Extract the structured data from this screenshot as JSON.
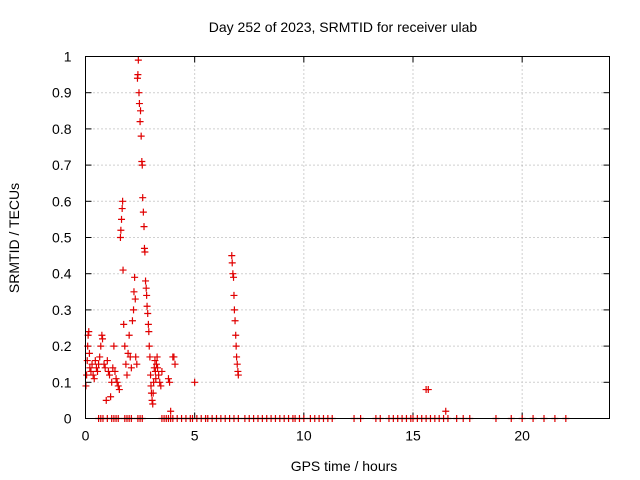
{
  "chart_data": {
    "type": "scatter",
    "title": "Day 252 of 2023, SRMTID for receiver ulab",
    "xlabel": "GPS time / hours",
    "ylabel": "SRMTID / TECUs",
    "xlim": [
      0,
      24
    ],
    "ylim": [
      0,
      1
    ],
    "grid": true,
    "x_ticks": [
      0,
      5,
      10,
      15,
      20
    ],
    "x_tick_labels": [
      "0",
      "5",
      "10",
      "15",
      "20"
    ],
    "y_ticks": [
      0,
      0.1,
      0.2,
      0.3,
      0.4,
      0.5,
      0.6,
      0.7,
      0.8,
      0.9,
      1
    ],
    "y_tick_labels": [
      "0",
      "0.1",
      "0.2",
      "0.3",
      "0.4",
      "0.5",
      "0.6",
      "0.7",
      "0.8",
      "0.9",
      "1"
    ],
    "marker": "plus",
    "color": "#e00000",
    "series": [
      {
        "name": "SRMTID",
        "points": [
          [
            0.02,
            0.09
          ],
          [
            0.05,
            0.12
          ],
          [
            0.08,
            0.16
          ],
          [
            0.1,
            0.2
          ],
          [
            0.12,
            0.23
          ],
          [
            0.15,
            0.24
          ],
          [
            0.18,
            0.18
          ],
          [
            0.2,
            0.14
          ],
          [
            0.25,
            0.13
          ],
          [
            0.3,
            0.15
          ],
          [
            0.35,
            0.12
          ],
          [
            0.4,
            0.11
          ],
          [
            0.45,
            0.16
          ],
          [
            0.5,
            0.14
          ],
          [
            0.55,
            0.13
          ],
          [
            0.6,
            0.15
          ],
          [
            0.65,
            0.17
          ],
          [
            0.7,
            0.2
          ],
          [
            0.75,
            0.23
          ],
          [
            0.78,
            0.22
          ],
          [
            0.85,
            0.15
          ],
          [
            0.9,
            0.14
          ],
          [
            0.95,
            0.05
          ],
          [
            1.0,
            0.16
          ],
          [
            1.05,
            0.13
          ],
          [
            1.1,
            0.12
          ],
          [
            1.15,
            0.06
          ],
          [
            1.2,
            0.1
          ],
          [
            1.25,
            0.14
          ],
          [
            1.3,
            0.2
          ],
          [
            1.35,
            0.13
          ],
          [
            1.4,
            0.11
          ],
          [
            1.45,
            0.1
          ],
          [
            1.5,
            0.09
          ],
          [
            1.55,
            0.08
          ],
          [
            1.6,
            0.5
          ],
          [
            1.62,
            0.52
          ],
          [
            1.65,
            0.55
          ],
          [
            1.68,
            0.58
          ],
          [
            1.7,
            0.6
          ],
          [
            1.72,
            0.41
          ],
          [
            1.75,
            0.26
          ],
          [
            1.8,
            0.2
          ],
          [
            1.85,
            0.15
          ],
          [
            1.9,
            0.12
          ],
          [
            1.95,
            0.18
          ],
          [
            2.0,
            0.23
          ],
          [
            2.05,
            0.17
          ],
          [
            2.1,
            0.14
          ],
          [
            2.15,
            0.27
          ],
          [
            2.2,
            0.3
          ],
          [
            2.22,
            0.35
          ],
          [
            2.25,
            0.39
          ],
          [
            2.28,
            0.33
          ],
          [
            2.3,
            0.17
          ],
          [
            2.35,
            0.15
          ],
          [
            2.38,
            0.94
          ],
          [
            2.4,
            0.95
          ],
          [
            2.42,
            0.99
          ],
          [
            2.45,
            0.9
          ],
          [
            2.47,
            0.87
          ],
          [
            2.5,
            0.82
          ],
          [
            2.52,
            0.85
          ],
          [
            2.55,
            0.78
          ],
          [
            2.58,
            0.71
          ],
          [
            2.6,
            0.7
          ],
          [
            2.62,
            0.61
          ],
          [
            2.65,
            0.57
          ],
          [
            2.68,
            0.53
          ],
          [
            2.7,
            0.47
          ],
          [
            2.72,
            0.46
          ],
          [
            2.75,
            0.38
          ],
          [
            2.78,
            0.36
          ],
          [
            2.8,
            0.34
          ],
          [
            2.82,
            0.31
          ],
          [
            2.85,
            0.29
          ],
          [
            2.88,
            0.26
          ],
          [
            2.9,
            0.24
          ],
          [
            2.92,
            0.2
          ],
          [
            2.95,
            0.17
          ],
          [
            2.98,
            0.12
          ],
          [
            3.0,
            0.09
          ],
          [
            3.02,
            0.07
          ],
          [
            3.05,
            0.05
          ],
          [
            3.08,
            0.04
          ],
          [
            3.1,
            0.07
          ],
          [
            3.12,
            0.1
          ],
          [
            3.15,
            0.14
          ],
          [
            3.18,
            0.16
          ],
          [
            3.2,
            0.13
          ],
          [
            3.22,
            0.11
          ],
          [
            3.25,
            0.15
          ],
          [
            3.28,
            0.17
          ],
          [
            3.3,
            0.14
          ],
          [
            3.35,
            0.12
          ],
          [
            3.4,
            0.1
          ],
          [
            3.45,
            0.09
          ],
          [
            3.5,
            0.13
          ],
          [
            3.8,
            0.11
          ],
          [
            3.85,
            0.1
          ],
          [
            3.9,
            0.02
          ],
          [
            4.0,
            0.17
          ],
          [
            4.05,
            0.17
          ],
          [
            4.1,
            0.15
          ],
          [
            5.0,
            0.1
          ],
          [
            6.7,
            0.45
          ],
          [
            6.72,
            0.43
          ],
          [
            6.75,
            0.4
          ],
          [
            6.78,
            0.39
          ],
          [
            6.8,
            0.34
          ],
          [
            6.82,
            0.3
          ],
          [
            6.85,
            0.27
          ],
          [
            6.88,
            0.23
          ],
          [
            6.9,
            0.2
          ],
          [
            6.92,
            0.17
          ],
          [
            6.95,
            0.15
          ],
          [
            6.98,
            0.13
          ],
          [
            7.0,
            0.12
          ],
          [
            15.6,
            0.08
          ],
          [
            15.7,
            0.08
          ],
          [
            16.5,
            0.02
          ],
          [
            0.6,
            0
          ],
          [
            0.7,
            0
          ],
          [
            0.8,
            0
          ],
          [
            1.0,
            0
          ],
          [
            1.2,
            0
          ],
          [
            1.3,
            0
          ],
          [
            1.4,
            0
          ],
          [
            1.5,
            0
          ],
          [
            1.8,
            0
          ],
          [
            1.9,
            0
          ],
          [
            2.0,
            0
          ],
          [
            2.1,
            0
          ],
          [
            2.4,
            0
          ],
          [
            2.5,
            0
          ],
          [
            2.6,
            0
          ],
          [
            3.5,
            0
          ],
          [
            3.6,
            0
          ],
          [
            3.7,
            0
          ],
          [
            3.8,
            0
          ],
          [
            3.9,
            0
          ],
          [
            4.0,
            0
          ],
          [
            4.2,
            0
          ],
          [
            4.4,
            0
          ],
          [
            4.6,
            0
          ],
          [
            4.8,
            0
          ],
          [
            4.9,
            0
          ],
          [
            5.1,
            0
          ],
          [
            5.3,
            0
          ],
          [
            5.5,
            0
          ],
          [
            5.6,
            0
          ],
          [
            5.8,
            0
          ],
          [
            6.0,
            0
          ],
          [
            6.2,
            0
          ],
          [
            6.4,
            0
          ],
          [
            6.6,
            0
          ],
          [
            6.8,
            0
          ],
          [
            7.0,
            0
          ],
          [
            7.3,
            0
          ],
          [
            7.5,
            0
          ],
          [
            7.7,
            0
          ],
          [
            7.9,
            0
          ],
          [
            8.1,
            0
          ],
          [
            8.3,
            0
          ],
          [
            8.5,
            0
          ],
          [
            8.7,
            0
          ],
          [
            8.9,
            0
          ],
          [
            9.1,
            0
          ],
          [
            9.3,
            0
          ],
          [
            9.5,
            0
          ],
          [
            9.6,
            0
          ],
          [
            9.8,
            0
          ],
          [
            10.0,
            0
          ],
          [
            10.3,
            0
          ],
          [
            10.5,
            0
          ],
          [
            10.7,
            0
          ],
          [
            10.9,
            0
          ],
          [
            11.1,
            0
          ],
          [
            11.3,
            0
          ],
          [
            12.3,
            0
          ],
          [
            12.6,
            0
          ],
          [
            13.3,
            0
          ],
          [
            13.5,
            0
          ],
          [
            13.9,
            0
          ],
          [
            14.1,
            0
          ],
          [
            14.3,
            0
          ],
          [
            14.5,
            0
          ],
          [
            14.7,
            0
          ],
          [
            14.9,
            0
          ],
          [
            15.0,
            0
          ],
          [
            15.2,
            0
          ],
          [
            15.4,
            0
          ],
          [
            15.6,
            0
          ],
          [
            15.8,
            0
          ],
          [
            16.0,
            0
          ],
          [
            16.2,
            0
          ],
          [
            16.4,
            0
          ],
          [
            16.6,
            0
          ],
          [
            17.0,
            0
          ],
          [
            17.3,
            0
          ],
          [
            17.6,
            0
          ],
          [
            18.8,
            0
          ],
          [
            19.5,
            0
          ],
          [
            20.0,
            0
          ],
          [
            20.5,
            0
          ],
          [
            21.0,
            0
          ],
          [
            21.5,
            0
          ],
          [
            22.0,
            0
          ]
        ]
      }
    ]
  }
}
